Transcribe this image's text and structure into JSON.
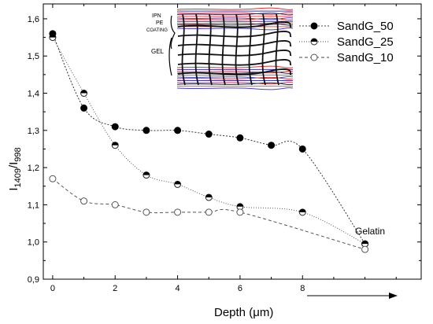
{
  "chart_data": {
    "type": "line",
    "xlabel_main": "Depth (",
    "xlabel_unit": "μm",
    "xlabel_close": ")",
    "ylabel_base": "I",
    "ylabel_num": "1409",
    "ylabel_sep": "/I",
    "ylabel_den": "998",
    "xlim": [
      -0.3,
      11.8
    ],
    "ylim": [
      0.9,
      1.64
    ],
    "x_ticks": [
      "0",
      "2",
      "4",
      "6",
      "8"
    ],
    "x_tick_values": [
      0,
      2,
      4,
      6,
      8
    ],
    "y_ticks": [
      "0,9",
      "1,0",
      "1,1",
      "1,2",
      "1,3",
      "1,4",
      "1,5",
      "1,6"
    ],
    "y_tick_values": [
      0.9,
      1.0,
      1.1,
      1.2,
      1.3,
      1.4,
      1.5,
      1.6
    ],
    "series": [
      {
        "name": "SandG_50",
        "marker": "filled",
        "x": [
          0,
          1,
          2,
          3,
          4,
          5,
          6,
          7,
          8,
          10
        ],
        "y": [
          1.56,
          1.36,
          1.31,
          1.3,
          1.3,
          1.29,
          1.28,
          1.26,
          1.25,
          0.995
        ]
      },
      {
        "name": "SandG_25",
        "marker": "half",
        "x": [
          0,
          1,
          2,
          3,
          4,
          5,
          6,
          8,
          10
        ],
        "y": [
          1.55,
          1.4,
          1.26,
          1.18,
          1.155,
          1.12,
          1.095,
          1.08,
          0.995
        ]
      },
      {
        "name": "SandG_10",
        "marker": "open",
        "x": [
          0,
          1,
          2,
          3,
          4,
          5,
          6,
          10
        ],
        "y": [
          1.17,
          1.11,
          1.1,
          1.08,
          1.08,
          1.08,
          1.08,
          0.98
        ]
      }
    ],
    "annotation": "Gelatin",
    "inset_labels": [
      "IPN",
      "PE",
      "COATING",
      "GEL"
    ],
    "legend_position": "top-right"
  }
}
